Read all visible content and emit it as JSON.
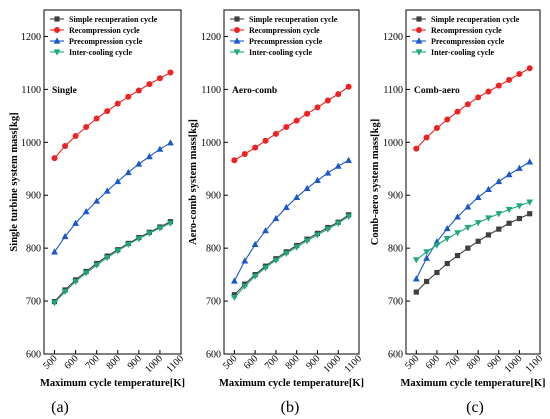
{
  "chart_data": [
    {
      "type": "line",
      "panel_label": "(a)",
      "annotation": "Single",
      "xlabel": "Maximum cycle temperature[K]",
      "ylabel": "Single turbine system mass[kg]",
      "xlim": [
        450,
        1100
      ],
      "ylim": [
        600,
        1250
      ],
      "xticks": [
        500,
        600,
        700,
        800,
        900,
        1000,
        1100
      ],
      "yticks": [
        600,
        700,
        800,
        900,
        1000,
        1100,
        1200
      ],
      "legend_position": "top-left",
      "x": [
        500,
        550,
        600,
        650,
        700,
        750,
        800,
        850,
        900,
        950,
        1000,
        1050
      ],
      "series": [
        {
          "name": "Simple recuperation cycle",
          "color": "#3f3f3f",
          "marker": "square",
          "values": [
            699,
            721,
            740,
            756,
            771,
            785,
            797,
            809,
            820,
            830,
            840,
            850
          ]
        },
        {
          "name": "Recompression cycle",
          "color": "#ee2222",
          "marker": "circle",
          "values": [
            970,
            993,
            1012,
            1029,
            1045,
            1059,
            1073,
            1086,
            1098,
            1110,
            1121,
            1132
          ]
        },
        {
          "name": "Precompression cycle",
          "color": "#1a56cc",
          "marker": "triangle-up",
          "values": [
            793,
            822,
            847,
            869,
            889,
            908,
            926,
            943,
            959,
            973,
            987,
            999
          ]
        },
        {
          "name": "Inter-cooling cycle",
          "color": "#1fa878",
          "marker": "triangle-down",
          "values": [
            697,
            718,
            737,
            753,
            768,
            782,
            795,
            807,
            818,
            828,
            838,
            847
          ]
        }
      ]
    },
    {
      "type": "line",
      "panel_label": "(b)",
      "annotation": "Aero-comb",
      "xlabel": "Maximum cycle temperature[K]",
      "ylabel": "Aero-comb system mass[kg]",
      "xlim": [
        450,
        1100
      ],
      "ylim": [
        600,
        1250
      ],
      "xticks": [
        500,
        600,
        700,
        800,
        900,
        1000,
        1100
      ],
      "yticks": [
        600,
        700,
        800,
        900,
        1000,
        1100,
        1200
      ],
      "legend_position": "top-left",
      "x": [
        500,
        550,
        600,
        650,
        700,
        750,
        800,
        850,
        900,
        950,
        1000,
        1050
      ],
      "series": [
        {
          "name": "Simple recuperation cycle",
          "color": "#3f3f3f",
          "marker": "square",
          "values": [
            712,
            732,
            750,
            766,
            780,
            793,
            805,
            817,
            828,
            839,
            849,
            863
          ]
        },
        {
          "name": "Recompression cycle",
          "color": "#ee2222",
          "marker": "circle",
          "values": [
            966,
            978,
            990,
            1003,
            1016,
            1029,
            1041,
            1054,
            1066,
            1079,
            1091,
            1105
          ]
        },
        {
          "name": "Precompression cycle",
          "color": "#1a56cc",
          "marker": "triangle-up",
          "values": [
            738,
            776,
            807,
            833,
            856,
            877,
            896,
            913,
            928,
            942,
            955,
            966
          ]
        },
        {
          "name": "Inter-cooling cycle",
          "color": "#1fa878",
          "marker": "triangle-down",
          "values": [
            707,
            728,
            747,
            763,
            777,
            790,
            802,
            814,
            825,
            836,
            847,
            860
          ]
        }
      ]
    },
    {
      "type": "line",
      "panel_label": "(c)",
      "annotation": "Comb-aero",
      "xlabel": "Maximum cycle temperature[K]",
      "ylabel": "Comb-aero system mass[kg]",
      "xlim": [
        450,
        1100
      ],
      "ylim": [
        600,
        1250
      ],
      "xticks": [
        500,
        600,
        700,
        800,
        900,
        1000,
        1100
      ],
      "yticks": [
        600,
        700,
        800,
        900,
        1000,
        1100,
        1200
      ],
      "legend_position": "top-left",
      "x": [
        500,
        550,
        600,
        650,
        700,
        750,
        800,
        850,
        900,
        950,
        1000,
        1050
      ],
      "series": [
        {
          "name": "Simple recuperation cycle",
          "color": "#3f3f3f",
          "marker": "square",
          "values": [
            717,
            737,
            754,
            771,
            786,
            800,
            813,
            825,
            836,
            847,
            856,
            865
          ]
        },
        {
          "name": "Recompression cycle",
          "color": "#ee2222",
          "marker": "circle",
          "values": [
            988,
            1009,
            1027,
            1043,
            1058,
            1072,
            1085,
            1096,
            1107,
            1118,
            1129,
            1140
          ]
        },
        {
          "name": "Precompression cycle",
          "color": "#1a56cc",
          "marker": "triangle-up",
          "values": [
            742,
            781,
            812,
            837,
            859,
            878,
            896,
            911,
            926,
            939,
            951,
            963
          ]
        },
        {
          "name": "Inter-cooling cycle",
          "color": "#1fa878",
          "marker": "triangle-down",
          "values": [
            778,
            793,
            806,
            818,
            829,
            839,
            848,
            857,
            865,
            873,
            880,
            887
          ]
        }
      ]
    }
  ]
}
